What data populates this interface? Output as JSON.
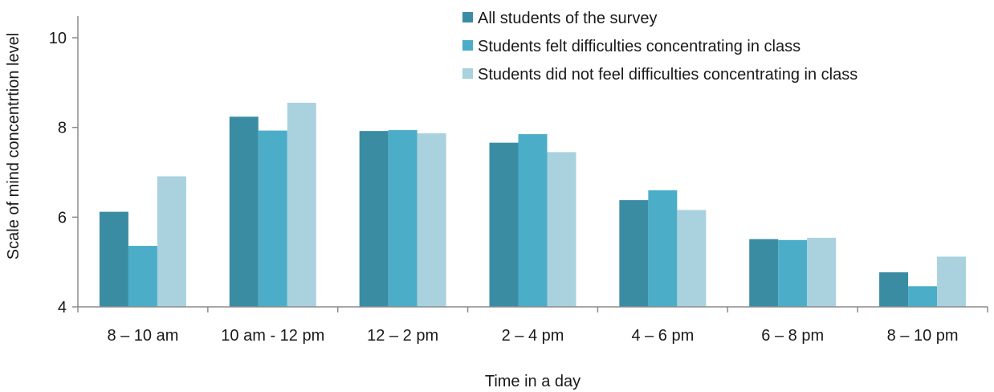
{
  "chart_data": {
    "type": "bar",
    "title": "",
    "xlabel": "Time in a day",
    "ylabel": "Scale of mind concentrtion level",
    "ylim": [
      4,
      10.5
    ],
    "yticks": [
      4,
      6,
      8,
      10
    ],
    "grid": false,
    "legend_position": "top-right",
    "categories": [
      "8 – 10 am",
      "10 am - 12 pm",
      "12 – 2 pm",
      "2 – 4 pm",
      "4 – 6 pm",
      "6 – 8 pm",
      "8 – 10 pm"
    ],
    "series": [
      {
        "name": "All students of the survey",
        "color": "#3a8ca3",
        "values": [
          6.12,
          8.24,
          7.92,
          7.66,
          6.38,
          5.51,
          4.77
        ]
      },
      {
        "name": "Students felt difficulties concentrating in class",
        "color": "#4badc7",
        "values": [
          5.36,
          7.93,
          7.94,
          7.85,
          6.6,
          5.49,
          4.46
        ]
      },
      {
        "name": "Students did not feel difficulties concentrating in class",
        "color": "#a9d1de",
        "values": [
          6.91,
          8.55,
          7.87,
          7.45,
          6.16,
          5.54,
          5.12
        ]
      }
    ]
  }
}
